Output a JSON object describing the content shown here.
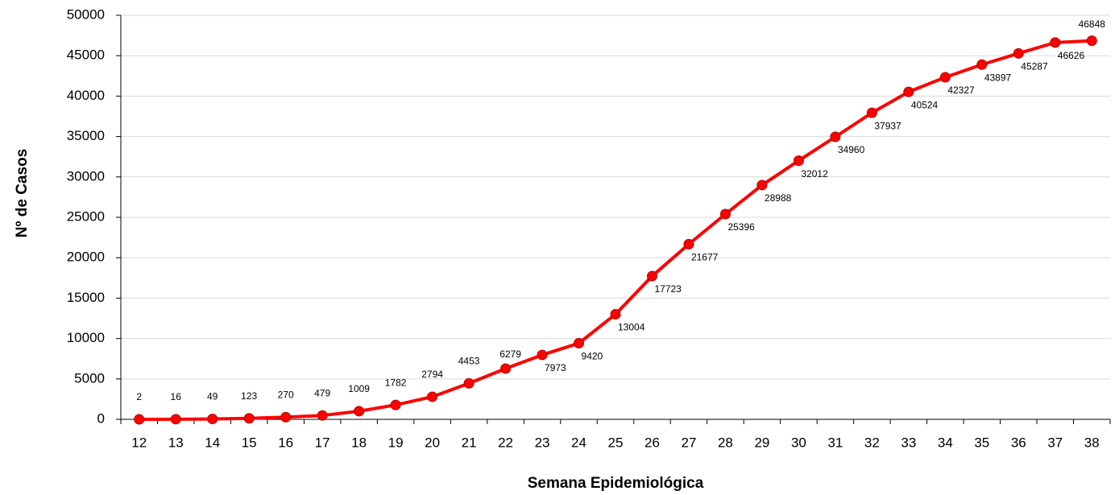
{
  "chart_data": {
    "type": "line",
    "x_label": "Semana Epidemiológica",
    "y_label": "Nº de Casos",
    "categories": [
      "12",
      "13",
      "14",
      "15",
      "16",
      "17",
      "18",
      "19",
      "20",
      "21",
      "22",
      "23",
      "24",
      "25",
      "26",
      "27",
      "28",
      "29",
      "30",
      "31",
      "32",
      "33",
      "34",
      "35",
      "36",
      "37",
      "38"
    ],
    "series": [
      {
        "name": "Nº de Casos",
        "color": "#ff0000",
        "values": [
          2,
          16,
          49,
          123,
          270,
          479,
          1009,
          1782,
          2794,
          4453,
          6279,
          7973,
          9420,
          13004,
          17723,
          21677,
          25396,
          28988,
          32012,
          34960,
          37937,
          40524,
          42327,
          43897,
          45287,
          46626,
          46848
        ]
      }
    ],
    "ylim": [
      0,
      50000
    ],
    "yticks": [
      0,
      5000,
      10000,
      15000,
      20000,
      25000,
      30000,
      35000,
      40000,
      45000,
      50000
    ],
    "grid": true
  }
}
